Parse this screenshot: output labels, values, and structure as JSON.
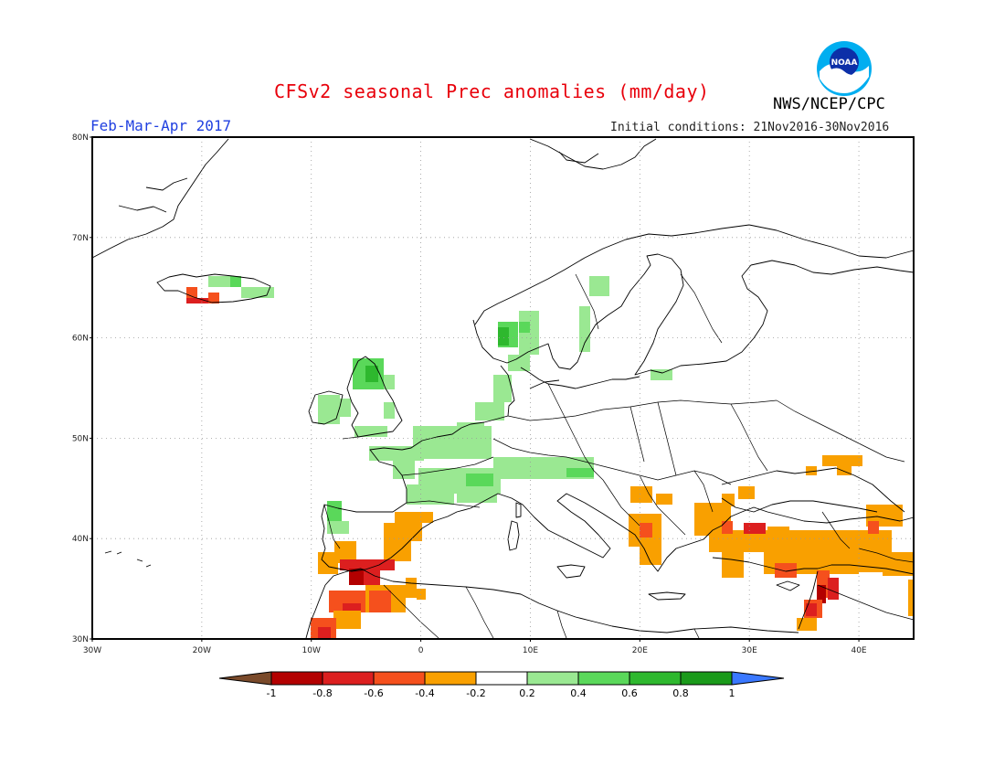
{
  "title": "CFSv2 seasonal Prec anomalies (mm/day)",
  "period": "Feb-Mar-Apr 2017",
  "initial_conditions": "Initial conditions: 21Nov2016-30Nov2016",
  "agency": "NWS/NCEP/CPC",
  "logo_text": "NOAA",
  "map": {
    "lon_range": [
      -30,
      45
    ],
    "lat_range": [
      30,
      80
    ],
    "lat_labels": [
      "30N",
      "40N",
      "50N",
      "60N",
      "70N",
      "80N"
    ],
    "lon_labels": [
      "30W",
      "20W",
      "10W",
      "0",
      "10E",
      "20E",
      "30E",
      "40E"
    ]
  },
  "colorbar": {
    "labels": [
      "-1",
      "-0.8",
      "-0.6",
      "-0.4",
      "-0.2",
      "0.2",
      "0.4",
      "0.6",
      "0.8",
      "1"
    ],
    "colors": {
      "below_min": "#7a4a2a",
      "neg_1_08": "#b30000",
      "neg_08_06": "#dc1f1f",
      "neg_06_04": "#f5501d",
      "neg_04_02": "#f9a000",
      "neutral": "#ffffff",
      "pos_02_04": "#9ae892",
      "pos_04_06": "#5ad85a",
      "pos_06_08": "#2eb82e",
      "pos_08_1": "#1a9a1a",
      "above_max": "#3a78ff"
    }
  }
}
